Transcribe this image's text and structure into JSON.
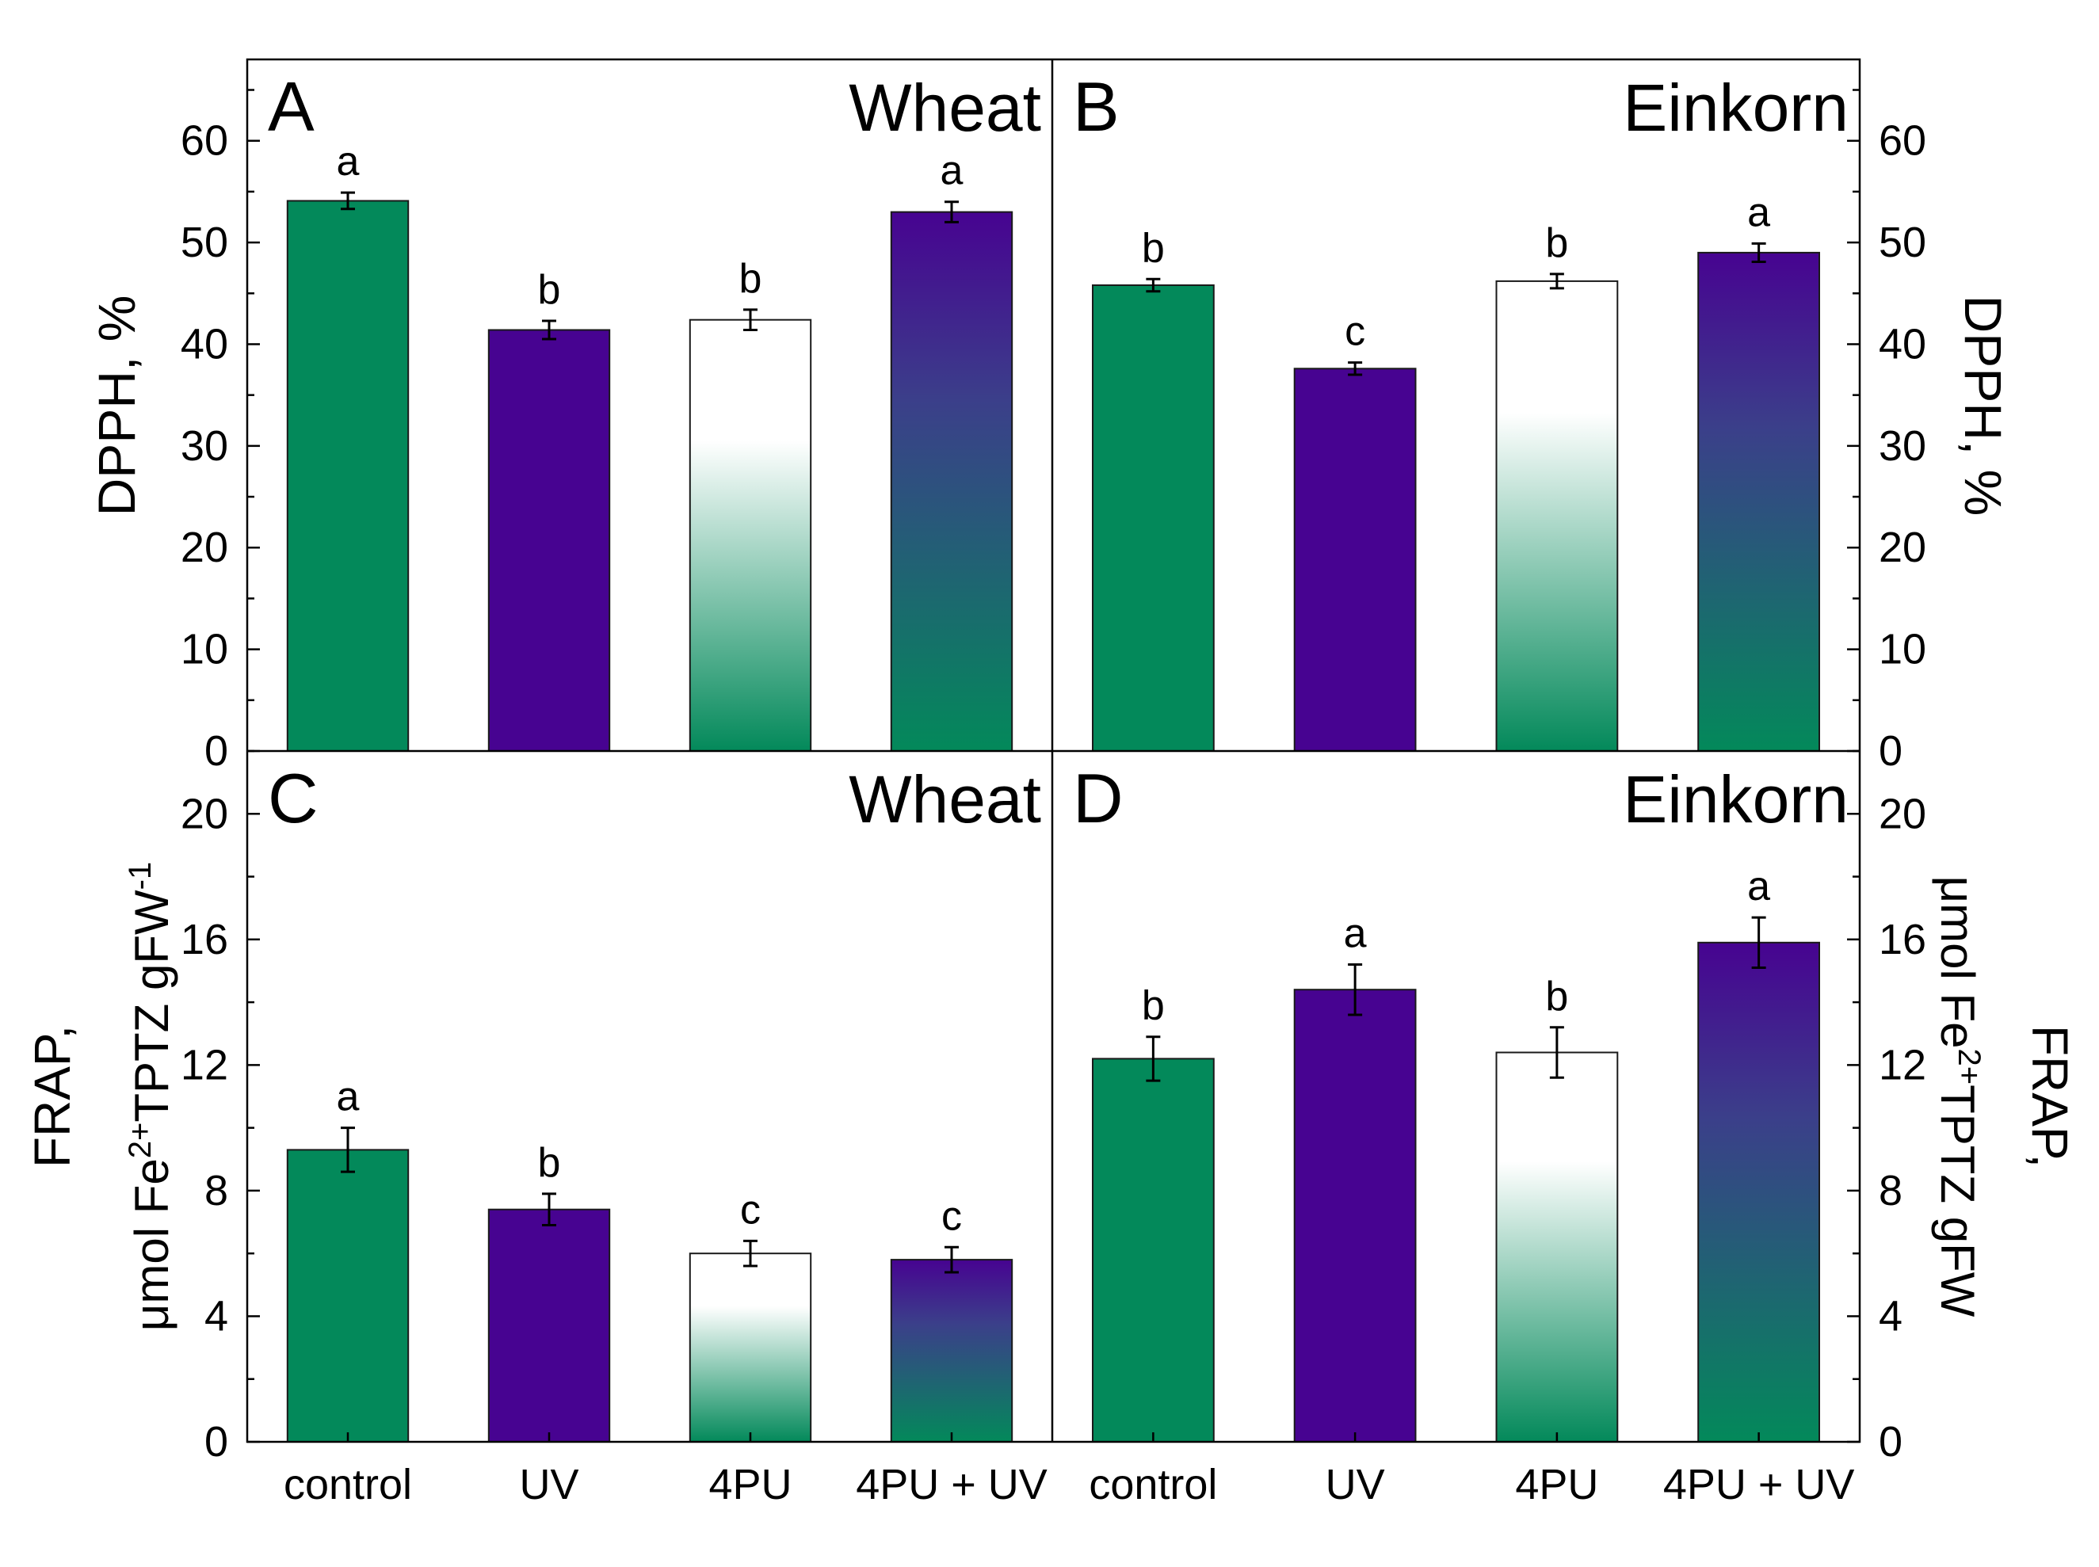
{
  "chart_data": [
    {
      "panel": "A",
      "type": "bar",
      "label": "A",
      "title": "Wheat",
      "ylabel": "DPPH, %",
      "ylim": [
        0,
        68
      ],
      "yticks": [
        0,
        10,
        20,
        30,
        40,
        50,
        60
      ],
      "ytick_labels": [
        "0",
        "10",
        "20",
        "30",
        "40",
        "50",
        "60"
      ],
      "categories": [
        "control",
        "UV",
        "4PU",
        "4PU + UV"
      ],
      "values": [
        54.1,
        41.4,
        42.4,
        53.0
      ],
      "errors": [
        0.8,
        0.9,
        1.0,
        1.0
      ],
      "letters": [
        "a",
        "b",
        "b",
        "a"
      ],
      "fills": [
        "green",
        "purple",
        "white-green",
        "purple-green"
      ]
    },
    {
      "panel": "B",
      "type": "bar",
      "label": "B",
      "title": "Einkorn",
      "ylabel": "DPPH, %",
      "ylim": [
        0,
        68
      ],
      "yticks": [
        0,
        10,
        20,
        30,
        40,
        50,
        60
      ],
      "ytick_labels": [
        "0",
        "10",
        "20",
        "30",
        "40",
        "50",
        "60"
      ],
      "categories": [
        "control",
        "UV",
        "4PU",
        "4PU + UV"
      ],
      "values": [
        45.8,
        37.6,
        46.2,
        49.0
      ],
      "errors": [
        0.6,
        0.6,
        0.7,
        0.9
      ],
      "letters": [
        "b",
        "c",
        "b",
        "a"
      ],
      "fills": [
        "green",
        "purple",
        "white-green",
        "purple-green"
      ]
    },
    {
      "panel": "C",
      "type": "bar",
      "label": "C",
      "title": "Wheat",
      "ylabel_line1": "FRAP,",
      "ylabel_line2": "μmol Fe2+TPTZ gFW-1",
      "ylabel_unit": "μmol Fe",
      "ylabel_sup1": "2+",
      "ylabel_mid": "TPTZ gFW",
      "ylabel_sup2": "-1",
      "ylim": [
        0,
        22
      ],
      "yticks": [
        0,
        4,
        8,
        12,
        16,
        20
      ],
      "ytick_labels": [
        "0",
        "4",
        "8",
        "12",
        "16",
        "20"
      ],
      "categories": [
        "control",
        "UV",
        "4PU",
        "4PU + UV"
      ],
      "values": [
        9.3,
        7.4,
        6.0,
        5.8
      ],
      "errors": [
        0.7,
        0.5,
        0.4,
        0.4
      ],
      "letters": [
        "a",
        "b",
        "c",
        "c"
      ],
      "fills": [
        "green",
        "purple",
        "white-green",
        "purple-green"
      ]
    },
    {
      "panel": "D",
      "type": "bar",
      "label": "D",
      "title": "Einkorn",
      "ylabel_line1": "FRAP,",
      "ylabel_line2": "μmol Fe2+TPTZ gFW",
      "ylabel_unit": "μmol Fe",
      "ylabel_sup1": "2+",
      "ylabel_mid": "TPTZ gFW",
      "ylim": [
        0,
        22
      ],
      "yticks": [
        0,
        4,
        8,
        12,
        16,
        20
      ],
      "ytick_labels": [
        "0",
        "4",
        "8",
        "12",
        "16",
        "20"
      ],
      "categories": [
        "control",
        "UV",
        "4PU",
        "4PU + UV"
      ],
      "values": [
        12.2,
        14.4,
        12.4,
        15.9
      ],
      "errors": [
        0.7,
        0.8,
        0.8,
        0.8
      ],
      "letters": [
        "b",
        "a",
        "b",
        "a"
      ],
      "fills": [
        "green",
        "purple",
        "white-green",
        "purple-green"
      ]
    }
  ],
  "colors": {
    "green": "#03895a",
    "purple": "#470391",
    "white": "#ffffff",
    "axis": "#000000"
  }
}
